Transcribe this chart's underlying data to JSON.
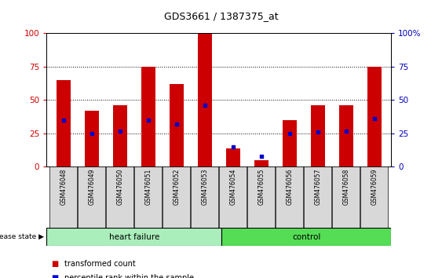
{
  "title": "GDS3661 / 1387375_at",
  "categories": [
    "GSM476048",
    "GSM476049",
    "GSM476050",
    "GSM476051",
    "GSM476052",
    "GSM476053",
    "GSM476054",
    "GSM476055",
    "GSM476056",
    "GSM476057",
    "GSM476058",
    "GSM476059"
  ],
  "red_values": [
    65,
    42,
    46,
    75,
    62,
    100,
    14,
    5,
    35,
    46,
    46,
    75
  ],
  "blue_values": [
    35,
    25,
    27,
    35,
    32,
    46,
    15,
    8,
    25,
    26,
    27,
    36
  ],
  "heart_failure_count": 6,
  "control_count": 6,
  "bar_color": "#cc0000",
  "blue_color": "#0000cc",
  "hf_fill": "#aaeebb",
  "ctrl_fill": "#55dd55",
  "tick_color_left": "#cc0000",
  "tick_color_right": "#0000bb",
  "ylim": [
    0,
    100
  ],
  "yticks": [
    0,
    25,
    50,
    75,
    100
  ],
  "disease_label": "disease state",
  "hf_label": "heart failure",
  "ctrl_label": "control",
  "legend_red": "transformed count",
  "legend_blue": "percentile rank within the sample"
}
